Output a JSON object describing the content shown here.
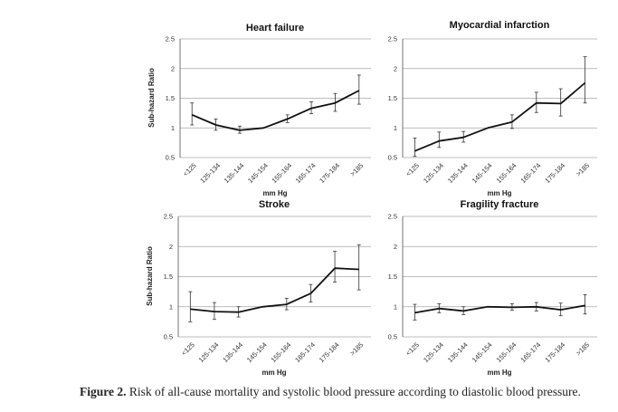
{
  "chart_data": [
    {
      "type": "line",
      "title": "Heart failure",
      "xlabel": "mm Hg",
      "ylabel": "Sub-hazard Ratio",
      "ylim": [
        0.5,
        2.5
      ],
      "yticks": [
        "0.5",
        "1",
        "1.5",
        "2",
        "2.5"
      ],
      "categories": [
        "<125",
        "125-134",
        "135-144",
        "145-154",
        "155-164",
        "165-174",
        "175-184",
        ">185"
      ],
      "values": [
        1.22,
        1.05,
        0.96,
        1.0,
        1.15,
        1.33,
        1.42,
        1.63
      ],
      "err_low": [
        1.05,
        0.96,
        0.91,
        1.0,
        1.09,
        1.24,
        1.28,
        1.4
      ],
      "err_high": [
        1.42,
        1.15,
        1.03,
        1.0,
        1.22,
        1.44,
        1.58,
        1.89
      ],
      "grid": true
    },
    {
      "type": "line",
      "title": "Myocardial infarction",
      "xlabel": "mm Hg",
      "ylabel": "",
      "ylim": [
        0.5,
        2.5
      ],
      "yticks": [
        "0.5",
        "1",
        "1.5",
        "2",
        "2.5"
      ],
      "categories": [
        "<125",
        "125-134",
        "135-144",
        "145-154",
        "155-164",
        "165-174",
        "175-184",
        ">185"
      ],
      "values": [
        0.61,
        0.78,
        0.84,
        1.0,
        1.1,
        1.42,
        1.41,
        1.76
      ],
      "err_low": [
        0.52,
        0.67,
        0.76,
        1.0,
        0.99,
        1.26,
        1.2,
        1.42
      ],
      "err_high": [
        0.83,
        0.93,
        0.94,
        1.0,
        1.22,
        1.6,
        1.66,
        2.2
      ],
      "grid": true
    },
    {
      "type": "line",
      "title": "Stroke",
      "xlabel": "mm Hg",
      "ylabel": "Sub-hazard Ratio",
      "ylim": [
        0.5,
        2.5
      ],
      "yticks": [
        "0.5",
        "1",
        "1.5",
        "2",
        "2.5"
      ],
      "categories": [
        "<125",
        "125-134",
        "135-144",
        "145-154",
        "155-164",
        "165-174",
        "175-184",
        ">185"
      ],
      "values": [
        0.96,
        0.92,
        0.91,
        1.0,
        1.04,
        1.22,
        1.64,
        1.62
      ],
      "err_low": [
        0.75,
        0.79,
        0.83,
        1.0,
        0.95,
        1.08,
        1.41,
        1.28
      ],
      "err_high": [
        1.25,
        1.07,
        1.0,
        1.0,
        1.14,
        1.37,
        1.92,
        2.03
      ],
      "grid": true
    },
    {
      "type": "line",
      "title": "Fragility fracture",
      "xlabel": "mm Hg",
      "ylabel": "",
      "ylim": [
        0.5,
        2.5
      ],
      "yticks": [
        "0.5",
        "1",
        "1.5",
        "2",
        "2.5"
      ],
      "categories": [
        "<125",
        "125-134",
        "135-144",
        "145-154",
        "155-164",
        "165-174",
        "175-184",
        ">185"
      ],
      "values": [
        0.9,
        0.97,
        0.93,
        1.0,
        0.99,
        1.0,
        0.95,
        1.02
      ],
      "err_low": [
        0.78,
        0.9,
        0.87,
        1.0,
        0.94,
        0.93,
        0.85,
        0.88
      ],
      "err_high": [
        1.04,
        1.05,
        1.0,
        1.0,
        1.05,
        1.07,
        1.06,
        1.2
      ],
      "grid": true
    }
  ],
  "caption": {
    "label": "Figure 2.",
    "text": " Risk of all-cause mortality and systolic blood pressure according to diastolic blood pressure."
  }
}
